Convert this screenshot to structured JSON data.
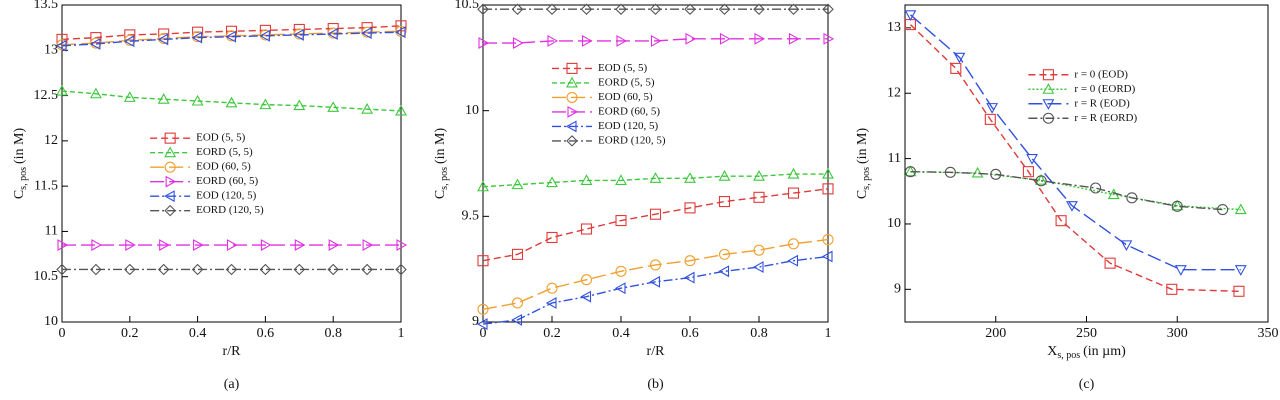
{
  "chart_data": [
    {
      "type": "line",
      "caption": "(a)",
      "xlabel": "r/R",
      "ylabel": {
        "main": "C",
        "sub": "s, pos",
        "unit": "(in M)"
      },
      "xlim": [
        0,
        1
      ],
      "xticks": [
        0,
        0.2,
        0.4,
        0.6,
        0.8,
        1
      ],
      "ylim": [
        10,
        13.5
      ],
      "yticks": [
        10,
        10.5,
        11,
        11.5,
        12,
        12.5,
        13,
        13.5
      ],
      "legend": "center",
      "x": [
        0,
        0.1,
        0.2,
        0.3,
        0.4,
        0.5,
        0.6,
        0.7,
        0.8,
        0.9,
        1
      ],
      "series": [
        {
          "name": "EOD (5, 5)",
          "color": "#e03a3a",
          "linestyle": "dashed",
          "marker": "square",
          "values": [
            13.12,
            13.14,
            13.17,
            13.18,
            13.2,
            13.21,
            13.22,
            13.23,
            13.24,
            13.25,
            13.27
          ]
        },
        {
          "name": "EORD (5, 5)",
          "color": "#3cc83c",
          "linestyle": "dashed-short",
          "marker": "triangle-up",
          "values": [
            12.55,
            12.52,
            12.48,
            12.46,
            12.44,
            12.42,
            12.4,
            12.39,
            12.37,
            12.35,
            12.33
          ]
        },
        {
          "name": "EOD (60, 5)",
          "color": "#f0a030",
          "linestyle": "long-dash",
          "marker": "circle",
          "values": [
            13.06,
            13.08,
            13.11,
            13.13,
            13.15,
            13.16,
            13.17,
            13.18,
            13.19,
            13.2,
            13.21
          ]
        },
        {
          "name": "EORD (60, 5)",
          "color": "#e030e0",
          "linestyle": "long-dash",
          "marker": "triangle-right",
          "values": [
            10.85,
            10.85,
            10.85,
            10.85,
            10.85,
            10.85,
            10.85,
            10.85,
            10.85,
            10.85,
            10.85
          ]
        },
        {
          "name": "EOD (120, 5)",
          "color": "#3050e0",
          "linestyle": "dash-dot",
          "marker": "triangle-left",
          "values": [
            13.05,
            13.07,
            13.1,
            13.12,
            13.14,
            13.15,
            13.16,
            13.17,
            13.18,
            13.19,
            13.2
          ]
        },
        {
          "name": "EORD (120, 5)",
          "color": "#555555",
          "linestyle": "dash-dot",
          "marker": "diamond",
          "values": [
            10.58,
            10.58,
            10.58,
            10.58,
            10.58,
            10.58,
            10.58,
            10.58,
            10.58,
            10.58,
            10.58
          ]
        }
      ]
    },
    {
      "type": "line",
      "caption": "(b)",
      "xlabel": "r/R",
      "ylabel": {
        "main": "C",
        "sub": "s, pos",
        "unit": "(in M)"
      },
      "xlim": [
        0,
        1
      ],
      "xticks": [
        0,
        0.2,
        0.4,
        0.6,
        0.8,
        1
      ],
      "ylim": [
        9,
        10.5
      ],
      "yticks": [
        9,
        9.5,
        10,
        10.5
      ],
      "legend": "upper center",
      "x": [
        0,
        0.1,
        0.2,
        0.3,
        0.4,
        0.5,
        0.6,
        0.7,
        0.8,
        0.9,
        1
      ],
      "series": [
        {
          "name": "EOD (5, 5)",
          "color": "#e03a3a",
          "linestyle": "dashed",
          "marker": "square",
          "values": [
            9.29,
            9.32,
            9.4,
            9.44,
            9.48,
            9.51,
            9.54,
            9.57,
            9.59,
            9.61,
            9.63
          ]
        },
        {
          "name": "EORD (5, 5)",
          "color": "#3cc83c",
          "linestyle": "dashed-short",
          "marker": "triangle-up",
          "values": [
            9.64,
            9.65,
            9.66,
            9.67,
            9.67,
            9.68,
            9.68,
            9.69,
            9.69,
            9.7,
            9.7
          ]
        },
        {
          "name": "EOD (60, 5)",
          "color": "#f0a030",
          "linestyle": "long-dash",
          "marker": "circle",
          "values": [
            9.06,
            9.09,
            9.16,
            9.2,
            9.24,
            9.27,
            9.29,
            9.32,
            9.34,
            9.37,
            9.39
          ]
        },
        {
          "name": "EORD (60, 5)",
          "color": "#e030e0",
          "linestyle": "long-dash",
          "marker": "triangle-right",
          "values": [
            10.32,
            10.32,
            10.33,
            10.33,
            10.33,
            10.33,
            10.34,
            10.34,
            10.34,
            10.34,
            10.34
          ]
        },
        {
          "name": "EOD (120, 5)",
          "color": "#3050e0",
          "linestyle": "dash-dot",
          "marker": "triangle-left",
          "values": [
            8.99,
            9.01,
            9.09,
            9.12,
            9.16,
            9.19,
            9.21,
            9.24,
            9.26,
            9.29,
            9.31
          ]
        },
        {
          "name": "EORD (120, 5)",
          "color": "#555555",
          "linestyle": "dash-dot",
          "marker": "diamond",
          "values": [
            10.48,
            10.48,
            10.48,
            10.48,
            10.48,
            10.48,
            10.48,
            10.48,
            10.48,
            10.48,
            10.48
          ]
        }
      ]
    },
    {
      "type": "line",
      "caption": "(c)",
      "xlabel": {
        "main": "X",
        "sub": "s, pos",
        "unit": "(in µm)"
      },
      "ylabel": {
        "main": "C",
        "sub": "s, pos",
        "unit": "(in M)"
      },
      "xlim": [
        150,
        350
      ],
      "xticks": [
        200,
        250,
        300,
        350
      ],
      "ylim": [
        8.5,
        13.35
      ],
      "yticks": [
        9,
        10,
        11,
        12,
        13
      ],
      "legend": "upper right",
      "series": [
        {
          "name": "r = 0 (EOD)",
          "color": "#e03a3a",
          "linestyle": "dashed",
          "marker": "square",
          "x": [
            153,
            178,
            197,
            218,
            236,
            263,
            297,
            334
          ],
          "values": [
            13.05,
            12.38,
            11.6,
            10.8,
            10.05,
            9.4,
            9.0,
            8.97
          ]
        },
        {
          "name": "r = 0 (EORD)",
          "color": "#3cc83c",
          "linestyle": "dotted",
          "marker": "triangle-up",
          "x": [
            153,
            190,
            225,
            265,
            300,
            335
          ],
          "values": [
            10.8,
            10.78,
            10.67,
            10.45,
            10.28,
            10.22
          ]
        },
        {
          "name": "r = R (EOD)",
          "color": "#3050e0",
          "linestyle": "long-dash",
          "marker": "triangle-down",
          "x": [
            153,
            180,
            198,
            220,
            242,
            272,
            302,
            335
          ],
          "values": [
            13.2,
            12.55,
            11.78,
            11.0,
            10.28,
            9.68,
            9.3,
            9.3
          ]
        },
        {
          "name": "r = R (EORD)",
          "color": "#555555",
          "linestyle": "dash-dot",
          "marker": "circle",
          "x": [
            153,
            175,
            200,
            225,
            255,
            275,
            300,
            325
          ],
          "values": [
            10.8,
            10.79,
            10.76,
            10.66,
            10.55,
            10.4,
            10.27,
            10.22
          ]
        }
      ]
    }
  ]
}
